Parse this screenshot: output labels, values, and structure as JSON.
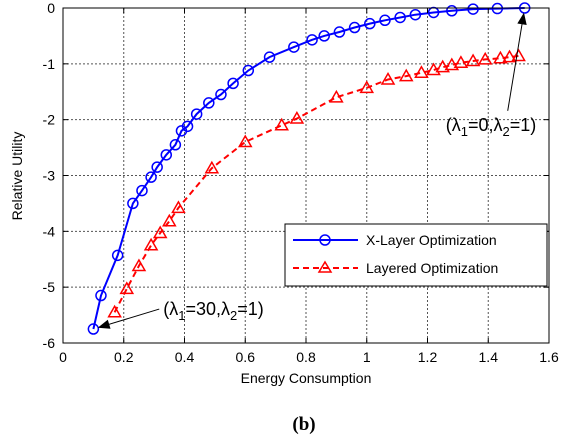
{
  "chart_data": {
    "type": "line",
    "xlabel": "Energy Consumption",
    "ylabel": "Relative Utility",
    "xlim": [
      0,
      1.6
    ],
    "ylim": [
      -6,
      0
    ],
    "xticks": [
      "0",
      "0.2",
      "0.4",
      "0.6",
      "0.8",
      "1",
      "1.2",
      "1.4",
      "1.6"
    ],
    "yticks": [
      "0",
      "-1",
      "-2",
      "-3",
      "-4",
      "-5",
      "-6"
    ],
    "grid": true,
    "legend_position": "lower-right",
    "caption": "(b)",
    "series": [
      {
        "name": "X-Layer Optimization",
        "color": "#0000ff",
        "line_style": "solid",
        "marker": "circle",
        "x": [
          0.1,
          0.125,
          0.18,
          0.23,
          0.26,
          0.29,
          0.31,
          0.34,
          0.37,
          0.39,
          0.41,
          0.44,
          0.48,
          0.52,
          0.56,
          0.61,
          0.68,
          0.76,
          0.82,
          0.86,
          0.91,
          0.96,
          1.01,
          1.06,
          1.11,
          1.16,
          1.22,
          1.28,
          1.35,
          1.43,
          1.52
        ],
        "y": [
          -5.75,
          -5.15,
          -4.43,
          -3.5,
          -3.27,
          -3.03,
          -2.85,
          -2.63,
          -2.45,
          -2.2,
          -2.12,
          -1.9,
          -1.7,
          -1.55,
          -1.35,
          -1.12,
          -0.88,
          -0.7,
          -0.57,
          -0.5,
          -0.43,
          -0.35,
          -0.28,
          -0.22,
          -0.17,
          -0.12,
          -0.08,
          -0.05,
          -0.02,
          -0.01,
          0.0
        ]
      },
      {
        "name": "Layered Optimization",
        "color": "#ff0000",
        "line_style": "dashed",
        "marker": "triangle",
        "x": [
          0.17,
          0.21,
          0.25,
          0.29,
          0.32,
          0.35,
          0.38,
          0.49,
          0.6,
          0.72,
          0.77,
          0.9,
          1.0,
          1.07,
          1.13,
          1.18,
          1.22,
          1.25,
          1.28,
          1.31,
          1.35,
          1.39,
          1.44,
          1.47,
          1.5
        ],
        "y": [
          -5.45,
          -5.03,
          -4.62,
          -4.25,
          -4.03,
          -3.82,
          -3.58,
          -2.87,
          -2.4,
          -2.1,
          -1.98,
          -1.6,
          -1.43,
          -1.28,
          -1.22,
          -1.16,
          -1.11,
          -1.06,
          -1.02,
          -0.98,
          -0.95,
          -0.92,
          -0.9,
          -0.88,
          -0.86
        ]
      }
    ],
    "annotations": [
      {
        "parts": [
          [
            "(λ",
            "normal"
          ],
          [
            "1",
            "sub"
          ],
          [
            "=0,λ",
            "normal"
          ],
          [
            "2",
            "sub"
          ],
          [
            "=1)",
            "normal"
          ]
        ],
        "target_x": 1.52,
        "target_y": 0.0,
        "text_x": 1.26,
        "text_y": -2.2
      },
      {
        "parts": [
          [
            "(λ",
            "normal"
          ],
          [
            "1",
            "sub"
          ],
          [
            "=30,λ",
            "normal"
          ],
          [
            "2",
            "sub"
          ],
          [
            "=1)",
            "normal"
          ]
        ],
        "target_x": 0.1,
        "target_y": -5.75,
        "text_x": 0.33,
        "text_y": -5.5
      }
    ]
  }
}
